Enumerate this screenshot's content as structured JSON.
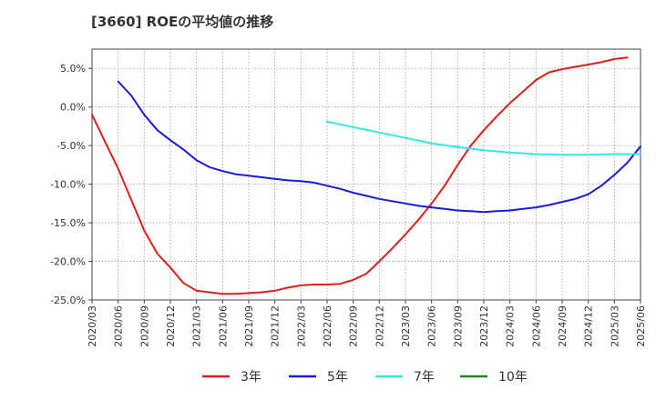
{
  "chart_data": {
    "type": "line",
    "title": "[3660]  ROEの平均値の推移",
    "xlabel": "",
    "ylabel": "",
    "ylim": [
      -25,
      7.5
    ],
    "y_ticks": [
      5,
      0,
      -5,
      -10,
      -15,
      -20,
      -25
    ],
    "y_tick_labels": [
      "5.0%",
      "0.0%",
      "-5.0%",
      "-10.0%",
      "-15.0%",
      "-20.0%",
      "-25.0%"
    ],
    "x_ticks": [
      "2020/03",
      "2020/06",
      "2020/09",
      "2020/12",
      "2021/03",
      "2021/06",
      "2021/09",
      "2021/12",
      "2022/03",
      "2022/06",
      "2022/09",
      "2022/12",
      "2023/03",
      "2023/06",
      "2023/09",
      "2023/12",
      "2024/03",
      "2024/06",
      "2024/09",
      "2024/12",
      "2025/03",
      "2025/06"
    ],
    "grid": true,
    "series": [
      {
        "name": "3年",
        "color": "#dd1f1f",
        "points": [
          [
            0,
            -1.0
          ],
          [
            0.5,
            -4.5
          ],
          [
            1,
            -8.0
          ],
          [
            1.5,
            -12.0
          ],
          [
            2,
            -16.0
          ],
          [
            2.5,
            -19.0
          ],
          [
            3,
            -20.8
          ],
          [
            3.5,
            -22.8
          ],
          [
            4,
            -23.8
          ],
          [
            4.5,
            -24.0
          ],
          [
            5,
            -24.2
          ],
          [
            5.5,
            -24.2
          ],
          [
            6,
            -24.1
          ],
          [
            6.5,
            -24.0
          ],
          [
            7,
            -23.8
          ],
          [
            7.5,
            -23.4
          ],
          [
            8,
            -23.1
          ],
          [
            8.5,
            -23.0
          ],
          [
            9,
            -23.0
          ],
          [
            9.5,
            -22.9
          ],
          [
            10,
            -22.4
          ],
          [
            10.5,
            -21.6
          ],
          [
            11,
            -20.0
          ],
          [
            11.5,
            -18.3
          ],
          [
            12,
            -16.5
          ],
          [
            12.5,
            -14.6
          ],
          [
            13,
            -12.5
          ],
          [
            13.5,
            -10.2
          ],
          [
            14,
            -7.5
          ],
          [
            14.5,
            -5.0
          ],
          [
            15,
            -3.0
          ],
          [
            15.5,
            -1.2
          ],
          [
            16,
            0.5
          ],
          [
            16.5,
            2.0
          ],
          [
            17,
            3.5
          ],
          [
            17.5,
            4.5
          ],
          [
            18,
            4.9
          ],
          [
            18.5,
            5.2
          ],
          [
            19,
            5.5
          ],
          [
            19.5,
            5.8
          ],
          [
            20,
            6.2
          ],
          [
            20.5,
            6.4
          ]
        ]
      },
      {
        "name": "5年",
        "color": "#1a1adb",
        "points": [
          [
            1,
            3.3
          ],
          [
            1.5,
            1.5
          ],
          [
            2,
            -1.0
          ],
          [
            2.5,
            -3.0
          ],
          [
            3,
            -4.3
          ],
          [
            3.5,
            -5.5
          ],
          [
            4,
            -6.9
          ],
          [
            4.5,
            -7.8
          ],
          [
            5,
            -8.3
          ],
          [
            5.5,
            -8.7
          ],
          [
            6,
            -8.9
          ],
          [
            6.5,
            -9.1
          ],
          [
            7,
            -9.3
          ],
          [
            7.5,
            -9.5
          ],
          [
            8,
            -9.6
          ],
          [
            8.5,
            -9.8
          ],
          [
            9,
            -10.2
          ],
          [
            9.5,
            -10.6
          ],
          [
            10,
            -11.1
          ],
          [
            10.5,
            -11.5
          ],
          [
            11,
            -11.9
          ],
          [
            11.5,
            -12.2
          ],
          [
            12,
            -12.5
          ],
          [
            12.5,
            -12.8
          ],
          [
            13,
            -13.0
          ],
          [
            13.5,
            -13.2
          ],
          [
            14,
            -13.4
          ],
          [
            14.5,
            -13.5
          ],
          [
            15,
            -13.6
          ],
          [
            15.5,
            -13.5
          ],
          [
            16,
            -13.4
          ],
          [
            16.5,
            -13.2
          ],
          [
            17,
            -13.0
          ],
          [
            17.5,
            -12.7
          ],
          [
            18,
            -12.3
          ],
          [
            18.5,
            -11.9
          ],
          [
            19,
            -11.3
          ],
          [
            19.5,
            -10.2
          ],
          [
            20,
            -8.8
          ],
          [
            20.5,
            -7.2
          ],
          [
            21,
            -5.1
          ]
        ]
      },
      {
        "name": "7年",
        "color": "#33e6ea",
        "points": [
          [
            9,
            -1.9
          ],
          [
            10,
            -2.6
          ],
          [
            11,
            -3.3
          ],
          [
            12,
            -4.0
          ],
          [
            13,
            -4.7
          ],
          [
            14,
            -5.2
          ],
          [
            15,
            -5.6
          ],
          [
            16,
            -5.9
          ],
          [
            17,
            -6.1
          ],
          [
            18,
            -6.2
          ],
          [
            19,
            -6.2
          ],
          [
            20,
            -6.1
          ],
          [
            21,
            -6.1
          ]
        ]
      },
      {
        "name": "10年",
        "color": "#1f8a1f",
        "points": []
      }
    ]
  }
}
